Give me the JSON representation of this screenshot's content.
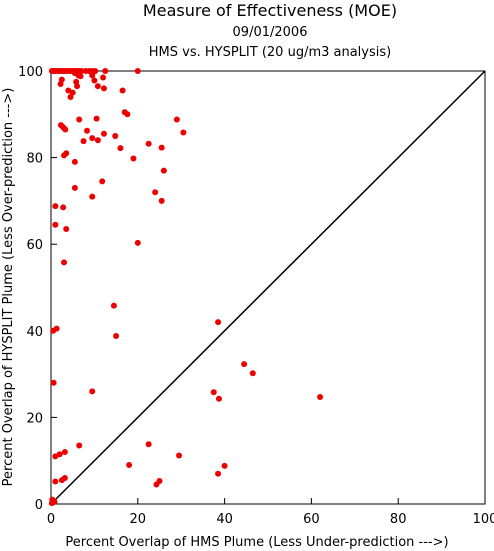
{
  "chart_data": {
    "type": "scatter",
    "title": "Measure of Effectiveness (MOE)",
    "subtitle_date": "09/01/2006",
    "subtitle_analysis": "HMS vs. HYSPLIT  (20 ug/m3 analysis)",
    "xlabel": "Percent Overlap of HMS Plume (Less Under-prediction --->)",
    "ylabel": "Percent Overlap of HYSPLIT Plume (Less Over-prediction --->)",
    "xlim": [
      0,
      100
    ],
    "ylim": [
      0,
      100
    ],
    "xticks": [
      "0",
      "20",
      "40",
      "60",
      "80",
      "100"
    ],
    "yticks": [
      "0",
      "20",
      "40",
      "60",
      "80",
      "100"
    ],
    "grid": false,
    "reference_line": "y = x",
    "marker_color": "#ee0000",
    "line_color": "#000000",
    "points": [
      [
        0.2,
        100
      ],
      [
        0.6,
        100
      ],
      [
        1.0,
        100
      ],
      [
        1.5,
        100
      ],
      [
        2.0,
        100
      ],
      [
        2.5,
        100
      ],
      [
        3.0,
        100
      ],
      [
        3.5,
        100
      ],
      [
        4.0,
        100
      ],
      [
        4.5,
        100
      ],
      [
        5.0,
        100
      ],
      [
        5.5,
        100
      ],
      [
        6.0,
        100
      ],
      [
        6.5,
        100
      ],
      [
        7.0,
        100
      ],
      [
        8.0,
        100
      ],
      [
        8.8,
        100
      ],
      [
        9.5,
        100
      ],
      [
        10.2,
        100
      ],
      [
        12.5,
        100
      ],
      [
        20.0,
        100
      ],
      [
        2.5,
        98.0
      ],
      [
        2.2,
        97.0
      ],
      [
        5.5,
        99.5
      ],
      [
        6.3,
        99.0
      ],
      [
        6.8,
        98.8
      ],
      [
        9.5,
        99.0
      ],
      [
        10.0,
        97.8
      ],
      [
        10.8,
        96.5
      ],
      [
        12.0,
        98.5
      ],
      [
        12.2,
        96.0
      ],
      [
        5.8,
        97.5
      ],
      [
        4.0,
        95.5
      ],
      [
        5.0,
        95.0
      ],
      [
        4.5,
        94.0
      ],
      [
        6.0,
        96.5
      ],
      [
        16.5,
        95.5
      ],
      [
        17.0,
        90.5
      ],
      [
        17.6,
        90.0
      ],
      [
        10.5,
        89.0
      ],
      [
        29.0,
        88.8
      ],
      [
        6.5,
        88.8
      ],
      [
        2.3,
        87.5
      ],
      [
        2.8,
        87.0
      ],
      [
        3.3,
        86.5
      ],
      [
        8.3,
        86.2
      ],
      [
        30.5,
        85.8
      ],
      [
        14.8,
        85.0
      ],
      [
        7.5,
        83.8
      ],
      [
        10.8,
        84.0
      ],
      [
        12.2,
        85.5
      ],
      [
        9.5,
        84.5
      ],
      [
        22.5,
        83.2
      ],
      [
        25.5,
        82.3
      ],
      [
        16.0,
        82.2
      ],
      [
        3.5,
        81.0
      ],
      [
        3.0,
        80.5
      ],
      [
        19.0,
        79.8
      ],
      [
        5.5,
        79.0
      ],
      [
        26.0,
        77.0
      ],
      [
        11.8,
        74.5
      ],
      [
        5.5,
        73.0
      ],
      [
        24.0,
        72.0
      ],
      [
        9.5,
        71.0
      ],
      [
        25.5,
        70.0
      ],
      [
        1.0,
        68.8
      ],
      [
        2.8,
        68.5
      ],
      [
        1.0,
        64.5
      ],
      [
        3.5,
        63.5
      ],
      [
        20.0,
        60.3
      ],
      [
        3.0,
        55.8
      ],
      [
        14.5,
        45.8
      ],
      [
        38.5,
        42.0
      ],
      [
        1.3,
        40.5
      ],
      [
        0.5,
        40.0
      ],
      [
        15.0,
        38.8
      ],
      [
        44.5,
        32.3
      ],
      [
        46.5,
        30.2
      ],
      [
        0.6,
        28.0
      ],
      [
        9.5,
        26.0
      ],
      [
        37.5,
        25.8
      ],
      [
        38.7,
        24.3
      ],
      [
        62.0,
        24.7
      ],
      [
        22.5,
        13.8
      ],
      [
        6.5,
        13.5
      ],
      [
        2.0,
        11.5
      ],
      [
        3.2,
        12.0
      ],
      [
        1.0,
        11.0
      ],
      [
        29.5,
        11.2
      ],
      [
        40.0,
        8.8
      ],
      [
        18.0,
        9.0
      ],
      [
        38.5,
        7.0
      ],
      [
        3.2,
        6.0
      ],
      [
        2.5,
        5.5
      ],
      [
        1.0,
        5.2
      ],
      [
        25.0,
        5.3
      ],
      [
        24.3,
        4.5
      ],
      [
        0.3,
        1.0
      ],
      [
        0.8,
        0.5
      ],
      [
        0.2,
        0.2
      ]
    ]
  }
}
